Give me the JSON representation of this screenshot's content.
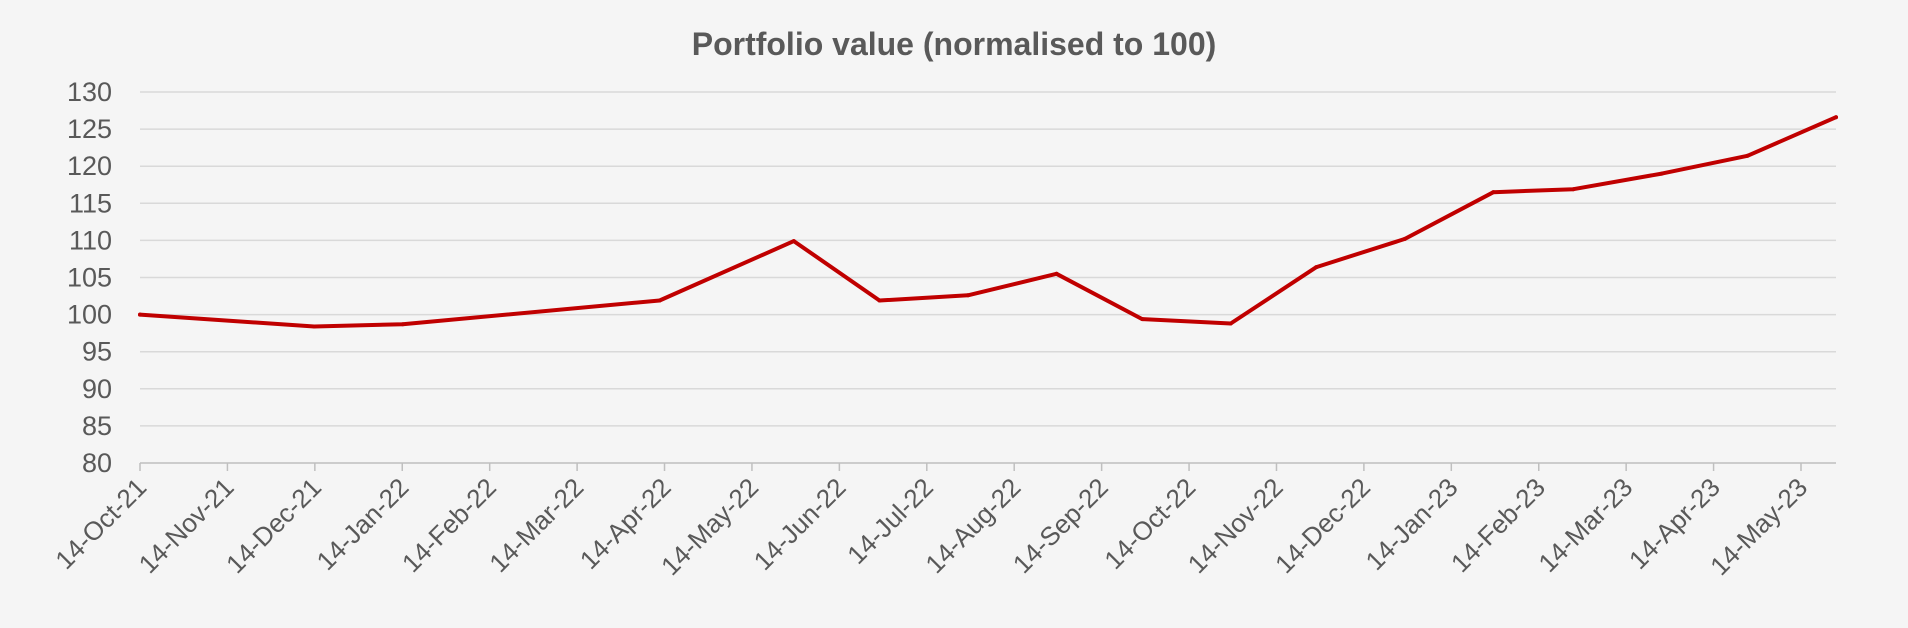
{
  "chart_data": {
    "type": "line",
    "title": "Portfolio value (normalised to 100)",
    "xlabel": "",
    "ylabel": "",
    "ylim": [
      80,
      130
    ],
    "yticks": [
      80,
      85,
      90,
      95,
      100,
      105,
      110,
      115,
      120,
      125,
      130
    ],
    "xticks": [
      "14-Oct-21",
      "14-Nov-21",
      "14-Dec-21",
      "14-Jan-22",
      "14-Feb-22",
      "14-Mar-22",
      "14-Apr-22",
      "14-May-22",
      "14-Jun-22",
      "14-Jul-22",
      "14-Aug-22",
      "14-Sep-22",
      "14-Oct-22",
      "14-Nov-22",
      "14-Dec-22",
      "14-Jan-23",
      "14-Feb-23",
      "14-Mar-23",
      "14-Apr-23",
      "14-May-23"
    ],
    "xlim": [
      "2021-10-14",
      "2023-05-31"
    ],
    "grid": true,
    "legend": "none",
    "series": [
      {
        "color": "#c00000",
        "points": [
          {
            "x": "2021-10-14",
            "y": 100.0
          },
          {
            "x": "2021-12-14",
            "y": 98.4
          },
          {
            "x": "2022-01-14",
            "y": 98.7
          },
          {
            "x": "2022-04-14",
            "y": 101.9
          },
          {
            "x": "2022-05-31",
            "y": 109.9
          },
          {
            "x": "2022-06-30",
            "y": 101.9
          },
          {
            "x": "2022-07-31",
            "y": 102.6
          },
          {
            "x": "2022-08-31",
            "y": 105.5
          },
          {
            "x": "2022-09-30",
            "y": 99.4
          },
          {
            "x": "2022-10-31",
            "y": 98.8
          },
          {
            "x": "2022-11-30",
            "y": 106.4
          },
          {
            "x": "2022-12-31",
            "y": 110.2
          },
          {
            "x": "2023-01-31",
            "y": 116.5
          },
          {
            "x": "2023-02-28",
            "y": 116.9
          },
          {
            "x": "2023-03-31",
            "y": 119.0
          },
          {
            "x": "2023-04-30",
            "y": 121.4
          },
          {
            "x": "2023-05-31",
            "y": 126.6
          }
        ]
      }
    ]
  }
}
